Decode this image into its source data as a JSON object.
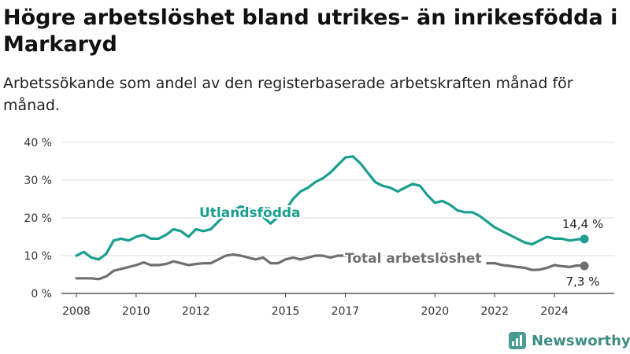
{
  "chart_data": {
    "type": "line",
    "title": "Högre arbetslöshet bland utrikes- än inrikesfödda i Markaryd",
    "subtitle": "Arbetssökande som andel av den registerbaserade arbetskraften månad för månad.",
    "ylim": [
      0,
      40
    ],
    "y_ticks": [
      0,
      10,
      20,
      30,
      40
    ],
    "y_tick_labels": [
      "0 %",
      "10 %",
      "20 %",
      "30 %",
      "40 %"
    ],
    "x_ticks": [
      2008,
      2010,
      2012,
      2015,
      2017,
      2020,
      2022,
      2024
    ],
    "x_tick_labels": [
      "2008",
      "2010",
      "2012",
      "2015",
      "2017",
      "2020",
      "2022",
      "2024"
    ],
    "grid": true,
    "legend": "inline labels",
    "series": [
      {
        "name": "Utlandsfödda",
        "color": "#1a9e8f",
        "end_label": "14,4 %",
        "points": [
          [
            2008.0,
            10.0
          ],
          [
            2008.25,
            11.0
          ],
          [
            2008.5,
            9.5
          ],
          [
            2008.75,
            9.0
          ],
          [
            2009.0,
            10.5
          ],
          [
            2009.25,
            14.0
          ],
          [
            2009.5,
            14.5
          ],
          [
            2009.75,
            14.0
          ],
          [
            2010.0,
            15.0
          ],
          [
            2010.25,
            15.5
          ],
          [
            2010.5,
            14.5
          ],
          [
            2010.75,
            14.5
          ],
          [
            2011.0,
            15.5
          ],
          [
            2011.25,
            17.0
          ],
          [
            2011.5,
            16.5
          ],
          [
            2011.75,
            15.0
          ],
          [
            2012.0,
            17.0
          ],
          [
            2012.25,
            16.5
          ],
          [
            2012.5,
            17.0
          ],
          [
            2012.75,
            19.0
          ],
          [
            2013.0,
            21.0
          ],
          [
            2013.5,
            23.0
          ],
          [
            2014.0,
            22.0
          ],
          [
            2014.5,
            18.5
          ],
          [
            2015.0,
            22.0
          ],
          [
            2015.25,
            25.0
          ],
          [
            2015.5,
            27.0
          ],
          [
            2015.75,
            28.0
          ],
          [
            2016.0,
            29.5
          ],
          [
            2016.25,
            30.5
          ],
          [
            2016.5,
            32.0
          ],
          [
            2016.75,
            34.0
          ],
          [
            2017.0,
            36.0
          ],
          [
            2017.25,
            36.3
          ],
          [
            2017.5,
            34.5
          ],
          [
            2017.75,
            32.0
          ],
          [
            2018.0,
            29.5
          ],
          [
            2018.25,
            28.5
          ],
          [
            2018.5,
            28.0
          ],
          [
            2018.75,
            27.0
          ],
          [
            2019.0,
            28.0
          ],
          [
            2019.25,
            29.0
          ],
          [
            2019.5,
            28.5
          ],
          [
            2019.75,
            26.0
          ],
          [
            2020.0,
            24.0
          ],
          [
            2020.25,
            24.5
          ],
          [
            2020.5,
            23.5
          ],
          [
            2020.75,
            22.0
          ],
          [
            2021.0,
            21.5
          ],
          [
            2021.25,
            21.5
          ],
          [
            2021.5,
            20.5
          ],
          [
            2021.75,
            19.0
          ],
          [
            2022.0,
            17.5
          ],
          [
            2022.25,
            16.5
          ],
          [
            2022.5,
            15.5
          ],
          [
            2022.75,
            14.5
          ],
          [
            2023.0,
            13.5
          ],
          [
            2023.25,
            13.0
          ],
          [
            2023.5,
            14.0
          ],
          [
            2023.75,
            15.0
          ],
          [
            2024.0,
            14.5
          ],
          [
            2024.25,
            14.5
          ],
          [
            2024.5,
            14.0
          ],
          [
            2024.75,
            14.3
          ],
          [
            2025.0,
            14.4
          ]
        ]
      },
      {
        "name": "Total arbetslöshet",
        "color": "#6f6f6f",
        "end_label": "7,3 %",
        "points": [
          [
            2008.0,
            4.0
          ],
          [
            2008.5,
            4.0
          ],
          [
            2008.75,
            3.8
          ],
          [
            2009.0,
            4.5
          ],
          [
            2009.25,
            6.0
          ],
          [
            2009.5,
            6.5
          ],
          [
            2009.75,
            7.0
          ],
          [
            2010.0,
            7.5
          ],
          [
            2010.25,
            8.2
          ],
          [
            2010.5,
            7.5
          ],
          [
            2010.75,
            7.5
          ],
          [
            2011.0,
            7.8
          ],
          [
            2011.25,
            8.5
          ],
          [
            2011.5,
            8.0
          ],
          [
            2011.75,
            7.5
          ],
          [
            2012.0,
            7.8
          ],
          [
            2012.25,
            8.0
          ],
          [
            2012.5,
            8.0
          ],
          [
            2012.75,
            9.0
          ],
          [
            2013.0,
            10.0
          ],
          [
            2013.25,
            10.3
          ],
          [
            2013.5,
            10.0
          ],
          [
            2013.75,
            9.5
          ],
          [
            2014.0,
            9.0
          ],
          [
            2014.25,
            9.5
          ],
          [
            2014.5,
            8.0
          ],
          [
            2014.75,
            8.0
          ],
          [
            2015.0,
            9.0
          ],
          [
            2015.25,
            9.5
          ],
          [
            2015.5,
            9.0
          ],
          [
            2015.75,
            9.5
          ],
          [
            2016.0,
            10.0
          ],
          [
            2016.25,
            10.0
          ],
          [
            2016.5,
            9.5
          ],
          [
            2016.75,
            10.0
          ],
          [
            2017.0,
            10.0
          ],
          [
            2017.25,
            10.2
          ],
          [
            2017.5,
            10.0
          ],
          [
            2021.75,
            8.0
          ],
          [
            2022.0,
            8.0
          ],
          [
            2022.25,
            7.5
          ],
          [
            2022.5,
            7.3
          ],
          [
            2022.75,
            7.0
          ],
          [
            2023.0,
            6.8
          ],
          [
            2023.25,
            6.2
          ],
          [
            2023.5,
            6.3
          ],
          [
            2023.75,
            6.8
          ],
          [
            2024.0,
            7.5
          ],
          [
            2024.25,
            7.2
          ],
          [
            2024.5,
            7.0
          ],
          [
            2024.75,
            7.4
          ],
          [
            2025.0,
            7.3
          ]
        ]
      }
    ]
  },
  "brand": {
    "name": "Newsworthy"
  }
}
